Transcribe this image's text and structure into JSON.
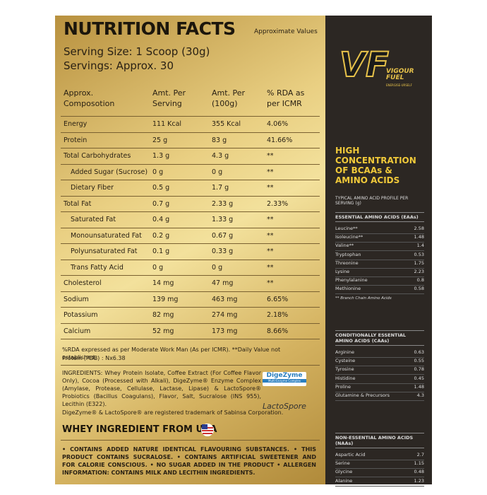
{
  "header": {
    "title": "NUTRITION FACTS",
    "note": "Approximate Values",
    "serving_size": "Serving Size: 1 Scoop (30g)",
    "servings": "Servings: Approx. 30"
  },
  "table": {
    "columns": [
      "Approx. Composotion",
      "Amt. Per Serving",
      "Amt. Per (100g)",
      "% RDA as per ICMR"
    ],
    "rows": [
      {
        "cells": [
          "Energy",
          "111 Kcal",
          "355 Kcal",
          "4.06%"
        ]
      },
      {
        "cells": [
          "Protein",
          "25 g",
          "83 g",
          "41.66%"
        ]
      },
      {
        "cells": [
          "Total Carbohydrates",
          "1.3 g",
          "4.3 g",
          "**"
        ],
        "sub_rows": [
          [
            "Added Sugar (Sucrose)",
            "0 g",
            "0 g",
            "**"
          ],
          [
            "Dietary Fiber",
            "0.5 g",
            "1.7 g",
            "**"
          ]
        ]
      },
      {
        "cells": [
          "Total Fat",
          "0.7 g",
          "2.33 g",
          "2.33%"
        ],
        "sub_rows": [
          [
            "Saturated Fat",
            "0.4 g",
            "1.33 g",
            "**"
          ],
          [
            "Monounsaturated Fat",
            "0.2 g",
            "0.67 g",
            "**"
          ],
          [
            "Polyunsaturated Fat",
            "0.1 g",
            "0.33 g",
            "**"
          ],
          [
            "Trans Fatty Acid",
            "0 g",
            "0 g",
            "**"
          ]
        ]
      },
      {
        "cells": [
          "Cholesterol",
          "14 mg",
          "47 mg",
          "**"
        ]
      },
      {
        "cells": [
          "Sodium",
          "139 mg",
          "463 mg",
          "6.65%"
        ]
      },
      {
        "cells": [
          "Potassium",
          "82 mg",
          "274 mg",
          "2.18%"
        ]
      },
      {
        "cells": [
          "Calcium",
          "52 mg",
          "173 mg",
          "8.66%"
        ]
      }
    ]
  },
  "footnotes": [
    "%RDA expressed as per Moderate Work Man (As per ICMR). **Daily Value not established.",
    "Protein (PDB) : Nx6.38"
  ],
  "ingredients": "INGREDIENTS: Whey Protein Isolate, Coffee Extract (For Coffee Flavor Only), Cocoa (Processed with Alkali), DigeZyme® Enzyme Complex (Amylase, Protease, Cellulase, Lactase, Lipase) & LactoSpore® Probiotics (Bacillus Coagulans), Flavor, Salt, Sucralose (INS 955), Lecithin (E322).",
  "badges": {
    "digezyme": "DigeZyme",
    "digezyme_sub": "Multi-Enzyme Complex",
    "lactospore": "LactoSpore"
  },
  "trademark": "DigeZyme® & LactoSpore® are registered trademark of Sabinsa Corporation.",
  "origin": "WHEY INGREDIENT FROM USA",
  "warnings": "• CONTAINS ADDED NATURE IDENTICAL FLAVOURING SUBSTANCES. • THIS PRODUCT CONTAINS SUCRALOSE. • CONTAINS ARTIFICIAL SWEETENER AND FOR CALORIE CONSCIOUS. • NO SUGAR ADDED IN THE PRODUCT • ALLERGEN INFORMATION: CONTAINS MILK AND LECITHIN INGREDIENTS.",
  "brand": {
    "logo": "VF",
    "name": "VIGOUR FUEL",
    "tagline": "ENERGISE-URSELF"
  },
  "panel": {
    "heading": "HIGH CONCENTRATION OF BCAAs & AMINO ACIDS",
    "profile": "TYPICAL AMINO ACID PROFILE PER SERVING (g)",
    "sections": [
      {
        "title": "ESSENTIAL AMINO ACIDS (EAAs)",
        "rows": [
          [
            "Leucine**",
            "2.58"
          ],
          [
            "Isoleucine**",
            "1.48"
          ],
          [
            "Valine**",
            "1.4"
          ],
          [
            "Tryptophan",
            "0.53"
          ],
          [
            "Threonine",
            "1.75"
          ],
          [
            "Lysine",
            "2.23"
          ],
          [
            "Phenylalanine",
            "0.8"
          ],
          [
            "Methionine",
            "0.58"
          ]
        ],
        "note": "** Branch Chain Amino Acids"
      },
      {
        "title": "CONDITIONALLY ESSENTIAL AMINO ACIDS (CAAs)",
        "rows": [
          [
            "Arginine",
            "0.63"
          ],
          [
            "Cysteine",
            "0.55"
          ],
          [
            "Tyrosine",
            "0.78"
          ],
          [
            "Histidine",
            "0.45"
          ],
          [
            "Proline",
            "1.48"
          ],
          [
            "Glutamine & Precursors",
            "4.3"
          ]
        ]
      },
      {
        "title": "NON-ESSENTIAL AMINO ACIDS (NAAs)",
        "rows": [
          [
            "Aspartic Acid",
            "2.7"
          ],
          [
            "Serine",
            "1.15"
          ],
          [
            "Glycine",
            "0.48"
          ],
          [
            "Alanine",
            "1.23"
          ]
        ]
      }
    ]
  }
}
